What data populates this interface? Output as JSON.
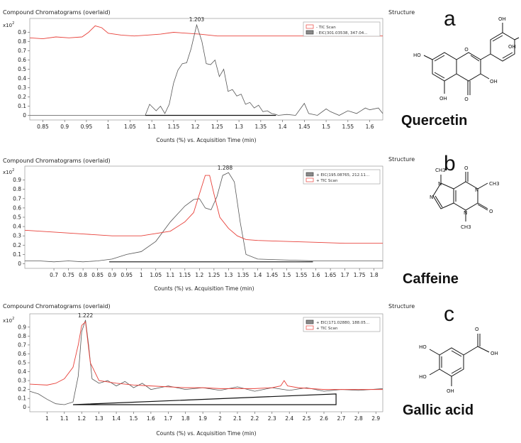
{
  "header_text": "Compound Chromatograms (overlaid)",
  "structure_label": "Structure",
  "x_axis_label": "Counts (%) vs. Acquisition Time (min)",
  "y_multiplier": "x10",
  "y_multiplier_exp": "2",
  "colors": {
    "tic": "#e8413a",
    "eic": "#555555",
    "baseline": "#111111"
  },
  "panels": [
    {
      "letter": "a",
      "compound": "Quercetin",
      "legend": [
        "- TIC Scan",
        "- EIC(301.03538, 347.04..."
      ],
      "peak_label": "1.203",
      "chart_data": {
        "type": "line",
        "xlim": [
          0.82,
          1.63
        ],
        "ylim": [
          -0.05,
          1.05
        ],
        "x_ticks": [
          0.85,
          0.9,
          0.95,
          1,
          1.05,
          1.1,
          1.15,
          1.2,
          1.25,
          1.3,
          1.35,
          1.4,
          1.45,
          1.5,
          1.55,
          1.6
        ],
        "y_ticks": [
          0,
          0.1,
          0.2,
          0.3,
          0.4,
          0.5,
          0.6,
          0.7,
          0.8,
          0.9
        ],
        "peak": {
          "x": 1.203,
          "y": 0.99
        },
        "baseline": [
          [
            1.085,
            0
          ],
          [
            1.385,
            0
          ]
        ],
        "series": [
          {
            "name": "- TIC Scan",
            "x": [
              0.82,
              0.85,
              0.88,
              0.91,
              0.94,
              0.955,
              0.97,
              0.985,
              1.0,
              1.03,
              1.06,
              1.09,
              1.12,
              1.15,
              1.18,
              1.21,
              1.25,
              1.3,
              1.35,
              1.4,
              1.45,
              1.5,
              1.55,
              1.6,
              1.63
            ],
            "y": [
              0.84,
              0.83,
              0.85,
              0.84,
              0.85,
              0.9,
              0.97,
              0.95,
              0.89,
              0.87,
              0.86,
              0.87,
              0.88,
              0.9,
              0.89,
              0.88,
              0.86,
              0.86,
              0.86,
              0.86,
              0.86,
              0.86,
              0.86,
              0.86,
              0.86
            ]
          },
          {
            "name": "- EIC(301.03538, 347.04...",
            "x": [
              0.82,
              1.085,
              1.095,
              1.11,
              1.12,
              1.13,
              1.14,
              1.15,
              1.16,
              1.17,
              1.18,
              1.19,
              1.203,
              1.215,
              1.225,
              1.235,
              1.245,
              1.255,
              1.265,
              1.275,
              1.285,
              1.295,
              1.305,
              1.315,
              1.325,
              1.335,
              1.345,
              1.355,
              1.365,
              1.375,
              1.385,
              1.39,
              1.41,
              1.43,
              1.45,
              1.46,
              1.48,
              1.5,
              1.51,
              1.53,
              1.55,
              1.57,
              1.59,
              1.6,
              1.62,
              1.63
            ],
            "y": [
              0,
              0,
              0.12,
              0.05,
              0.1,
              0.02,
              0.12,
              0.35,
              0.49,
              0.56,
              0.57,
              0.72,
              0.98,
              0.8,
              0.56,
              0.55,
              0.6,
              0.42,
              0.5,
              0.26,
              0.28,
              0.21,
              0.23,
              0.12,
              0.14,
              0.08,
              0.11,
              0.04,
              0.05,
              0.02,
              0.01,
              0.0,
              0.01,
              0.0,
              0.13,
              0.02,
              0.0,
              0.07,
              0.04,
              0.0,
              0.05,
              0.02,
              0.08,
              0.06,
              0.08,
              0.02
            ]
          }
        ]
      }
    },
    {
      "letter": "b",
      "compound": "Caffeine",
      "legend": [
        "+ EIC(195.08765, 212.11...",
        "+ TIC Scan"
      ],
      "peak_label": "1.288",
      "chart_data": {
        "type": "line",
        "xlim": [
          0.6,
          1.83
        ],
        "ylim": [
          -0.05,
          1.05
        ],
        "x_ticks": [
          0.7,
          0.75,
          0.8,
          0.85,
          0.9,
          0.95,
          1,
          1.05,
          1.1,
          1.15,
          1.2,
          1.25,
          1.3,
          1.35,
          1.4,
          1.45,
          1.5,
          1.55,
          1.6,
          1.65,
          1.7,
          1.75,
          1.8
        ],
        "y_ticks": [
          0,
          0.1,
          0.2,
          0.3,
          0.4,
          0.5,
          0.6,
          0.7,
          0.8,
          0.9
        ],
        "peak": {
          "x": 1.288,
          "y": 0.98
        },
        "baseline": [
          [
            0.89,
            0.02
          ],
          [
            1.59,
            0.02
          ]
        ],
        "series": [
          {
            "name": "+ EIC(195.08765, 212.11...",
            "x": [
              0.6,
              0.65,
              0.7,
              0.75,
              0.8,
              0.85,
              0.9,
              0.95,
              1.0,
              1.05,
              1.1,
              1.15,
              1.18,
              1.2,
              1.22,
              1.24,
              1.26,
              1.28,
              1.3,
              1.32,
              1.34,
              1.36,
              1.4,
              1.5,
              1.6,
              1.7,
              1.83
            ],
            "y": [
              0.03,
              0.03,
              0.02,
              0.03,
              0.02,
              0.03,
              0.05,
              0.1,
              0.13,
              0.24,
              0.45,
              0.62,
              0.69,
              0.7,
              0.6,
              0.58,
              0.72,
              0.95,
              0.98,
              0.88,
              0.45,
              0.1,
              0.05,
              0.04,
              0.03,
              0.03,
              0.03
            ]
          },
          {
            "name": "+ TIC Scan",
            "x": [
              0.6,
              0.7,
              0.8,
              0.9,
              1.0,
              1.1,
              1.15,
              1.18,
              1.2,
              1.22,
              1.235,
              1.25,
              1.27,
              1.3,
              1.33,
              1.36,
              1.4,
              1.5,
              1.6,
              1.7,
              1.83
            ],
            "y": [
              0.36,
              0.34,
              0.32,
              0.3,
              0.3,
              0.35,
              0.45,
              0.55,
              0.75,
              0.95,
              0.95,
              0.75,
              0.5,
              0.38,
              0.3,
              0.26,
              0.25,
              0.24,
              0.23,
              0.22,
              0.22
            ]
          }
        ]
      }
    },
    {
      "letter": "c",
      "compound": "Gallic acid",
      "legend": [
        "+ EIC(171.02880, 188.05...",
        "+ TIC Scan"
      ],
      "peak_label": "1.222",
      "chart_data": {
        "type": "line",
        "xlim": [
          0.9,
          2.94
        ],
        "ylim": [
          -0.05,
          1.05
        ],
        "x_ticks": [
          1,
          1.1,
          1.2,
          1.3,
          1.4,
          1.5,
          1.6,
          1.7,
          1.8,
          1.9,
          2,
          2.1,
          2.2,
          2.3,
          2.4,
          2.5,
          2.6,
          2.7,
          2.8,
          2.9
        ],
        "y_ticks": [
          0,
          0.1,
          0.2,
          0.3,
          0.4,
          0.5,
          0.6,
          0.7,
          0.8,
          0.9
        ],
        "peak": {
          "x": 1.222,
          "y": 0.98
        },
        "baseline": [
          [
            1.15,
            0.03
          ],
          [
            2.67,
            0.15
          ],
          [
            2.67,
            0.03
          ],
          [
            1.15,
            0.03
          ]
        ],
        "series": [
          {
            "name": "+ EIC(171.02880, 188.05...",
            "x": [
              0.9,
              0.95,
              1.0,
              1.05,
              1.1,
              1.15,
              1.18,
              1.2,
              1.222,
              1.24,
              1.26,
              1.3,
              1.35,
              1.4,
              1.45,
              1.5,
              1.55,
              1.6,
              1.7,
              1.8,
              1.9,
              2.0,
              2.1,
              2.2,
              2.3,
              2.4,
              2.5,
              2.6,
              2.7,
              2.8,
              2.94
            ],
            "y": [
              0.18,
              0.15,
              0.09,
              0.04,
              0.03,
              0.06,
              0.35,
              0.85,
              0.98,
              0.7,
              0.32,
              0.27,
              0.3,
              0.24,
              0.29,
              0.22,
              0.27,
              0.2,
              0.24,
              0.2,
              0.22,
              0.19,
              0.23,
              0.18,
              0.22,
              0.19,
              0.22,
              0.18,
              0.2,
              0.19,
              0.21
            ]
          },
          {
            "name": "+ TIC Scan",
            "x": [
              0.9,
              1.0,
              1.05,
              1.1,
              1.15,
              1.18,
              1.2,
              1.222,
              1.25,
              1.3,
              1.4,
              1.5,
              1.6,
              1.7,
              1.8,
              1.9,
              2.0,
              2.1,
              2.2,
              2.3,
              2.35,
              2.37,
              2.39,
              2.45,
              2.6,
              2.8,
              2.94
            ],
            "y": [
              0.26,
              0.25,
              0.27,
              0.32,
              0.45,
              0.7,
              0.92,
              0.96,
              0.5,
              0.3,
              0.27,
              0.25,
              0.24,
              0.23,
              0.22,
              0.22,
              0.21,
              0.21,
              0.21,
              0.22,
              0.24,
              0.3,
              0.24,
              0.22,
              0.2,
              0.2,
              0.2
            ]
          }
        ]
      }
    }
  ]
}
